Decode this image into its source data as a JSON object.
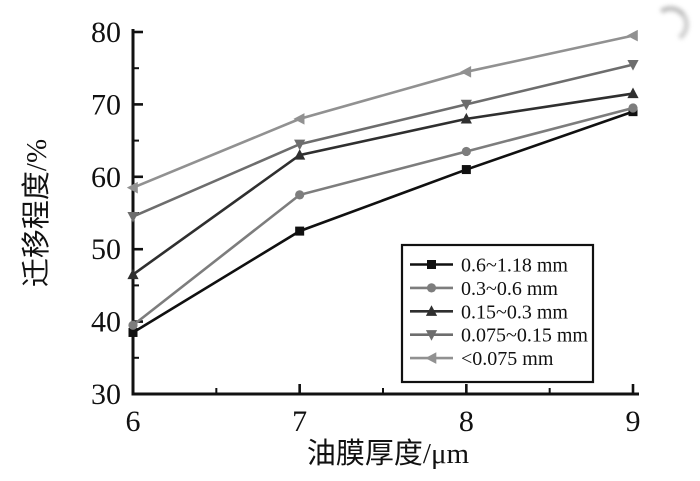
{
  "chart_data": {
    "type": "line",
    "title": "",
    "xlabel": "油膜厚度/μm",
    "ylabel": "迁移程度/%",
    "x": [
      6,
      7,
      8,
      9
    ],
    "xlim": [
      6,
      9
    ],
    "ylim": [
      30,
      80
    ],
    "xticks_major": [
      6,
      7,
      8,
      9
    ],
    "xticks_minor": [
      6.5,
      7.5,
      8.5
    ],
    "yticks_major": [
      30,
      40,
      50,
      60,
      70,
      80
    ],
    "yticks_minor": [
      35,
      45,
      55,
      65,
      75
    ],
    "grid": false,
    "axis_color": "#111111",
    "background_color": "#ffffff",
    "legend_position": "inside-lower-right",
    "legend_border_color": "#111111",
    "series": [
      {
        "name": "0.6~1.18 mm",
        "marker": "square",
        "color": "#101010",
        "values": [
          38.5,
          52.5,
          61.0,
          69.0
        ]
      },
      {
        "name": "0.3~0.6 mm",
        "marker": "circle",
        "color": "#7d7d7d",
        "values": [
          39.5,
          57.5,
          63.5,
          69.5
        ]
      },
      {
        "name": "0.15~0.3 mm",
        "marker": "triangle-up",
        "color": "#2f2f2f",
        "values": [
          46.5,
          63.0,
          68.0,
          71.5
        ]
      },
      {
        "name": "0.075~0.15 mm",
        "marker": "triangle-down",
        "color": "#6d6d6d",
        "values": [
          54.5,
          64.5,
          70.0,
          75.5
        ]
      },
      {
        "name": "<0.075 mm",
        "marker": "triangle-left",
        "color": "#919191",
        "values": [
          58.5,
          68.0,
          74.5,
          79.5
        ]
      }
    ]
  }
}
